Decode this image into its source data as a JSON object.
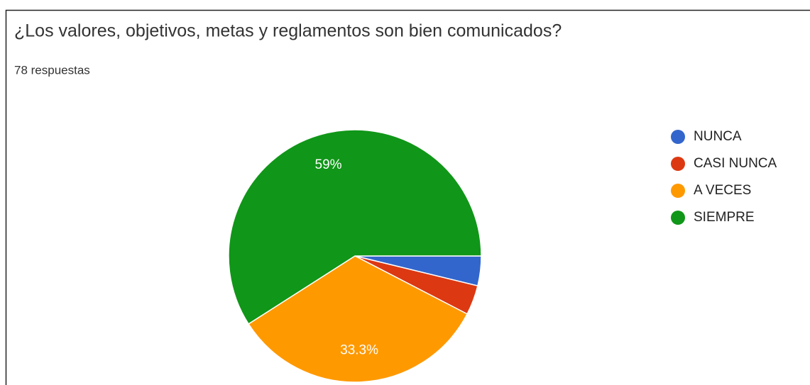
{
  "chart_data": {
    "type": "pie",
    "title": "¿Los valores, objetivos, metas y reglamentos son bien comunicados?",
    "subtitle": "78 respuestas",
    "categories": [
      "NUNCA",
      "CASI NUNCA",
      "A VECES",
      "SIEMPRE"
    ],
    "values": [
      3.8,
      3.8,
      33.3,
      59
    ],
    "value_labels": [
      null,
      null,
      "33.3%",
      "59%"
    ],
    "colors": [
      "#3366cc",
      "#dc3912",
      "#ff9900",
      "#109618"
    ],
    "legend": "right"
  }
}
